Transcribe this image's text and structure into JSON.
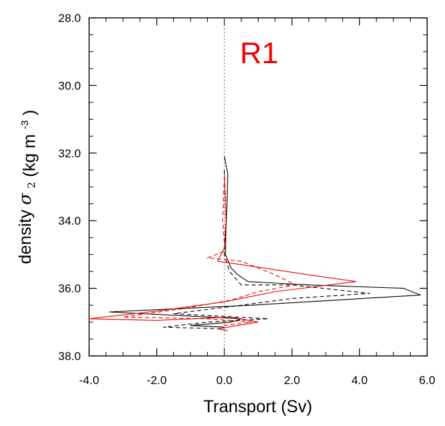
{
  "chart_data": {
    "type": "line",
    "title": "",
    "panel_label": "R1",
    "xlabel": "Transport (Sv)",
    "ylabel": {
      "prefix": "density",
      "symbol_base": "σ",
      "symbol_sub": "2",
      "unit_open": "(kg m",
      "unit_sup": "-3",
      "unit_close": ")"
    },
    "xlim": [
      -4.0,
      6.0
    ],
    "ylim": [
      38.0,
      28.0
    ],
    "y_inverted": true,
    "xticks": [
      -4.0,
      -2.0,
      0.0,
      2.0,
      4.0,
      6.0
    ],
    "xtick_labels": [
      "-4.0",
      "-2.0",
      "0.0",
      "2.0",
      "4.0",
      "6.0"
    ],
    "yticks": [
      28.0,
      30.0,
      32.0,
      34.0,
      36.0,
      38.0
    ],
    "ytick_labels": [
      "28.0",
      "30.0",
      "32.0",
      "34.0",
      "36.0",
      "38.0"
    ],
    "zero_reference_line": {
      "x": 0.0,
      "style": "dotted"
    },
    "grid": false,
    "colors": {
      "black": "#000000",
      "red": "#ee0000",
      "panel_label": "#ee0000"
    },
    "series": [
      {
        "color": "#000000",
        "style": "solid",
        "points": [
          [
            0.0,
            32.1
          ],
          [
            0.1,
            32.6
          ],
          [
            0.08,
            33.5
          ],
          [
            0.05,
            34.2
          ],
          [
            0.03,
            35.0
          ],
          [
            0.2,
            35.4
          ],
          [
            0.4,
            35.6
          ],
          [
            0.7,
            35.8
          ],
          [
            2.5,
            35.9
          ],
          [
            5.3,
            36.0
          ],
          [
            5.8,
            36.2
          ],
          [
            0.8,
            36.5
          ],
          [
            -3.4,
            36.7
          ],
          [
            0.5,
            36.9
          ],
          [
            0.2,
            37.0
          ],
          [
            -1.0,
            37.1
          ],
          [
            0.0,
            37.15
          ]
        ]
      },
      {
        "color": "#000000",
        "style": "dashed",
        "points": [
          [
            0.0,
            32.5
          ],
          [
            0.05,
            34.0
          ],
          [
            0.0,
            35.0
          ],
          [
            0.15,
            35.5
          ],
          [
            0.5,
            35.9
          ],
          [
            2.0,
            35.9
          ],
          [
            4.3,
            36.15
          ],
          [
            2.0,
            36.3
          ],
          [
            0.5,
            36.5
          ],
          [
            -1.5,
            36.75
          ],
          [
            1.3,
            36.9
          ],
          [
            -0.5,
            37.0
          ],
          [
            -1.8,
            37.15
          ],
          [
            0.0,
            37.2
          ]
        ]
      },
      {
        "color": "#ee0000",
        "style": "solid",
        "points": [
          [
            0.0,
            32.6
          ],
          [
            0.05,
            34.0
          ],
          [
            0.0,
            34.8
          ],
          [
            -0.2,
            35.2
          ],
          [
            0.5,
            35.3
          ],
          [
            2.5,
            35.6
          ],
          [
            3.9,
            35.8
          ],
          [
            1.5,
            36.1
          ],
          [
            0.0,
            36.4
          ],
          [
            -1.8,
            36.65
          ],
          [
            -4.0,
            36.9
          ],
          [
            -2.0,
            36.95
          ],
          [
            0.2,
            36.85
          ],
          [
            1.0,
            37.0
          ],
          [
            -0.2,
            37.2
          ],
          [
            0.1,
            37.25
          ]
        ]
      },
      {
        "color": "#ee0000",
        "style": "dashed",
        "points": [
          [
            0.0,
            32.7
          ],
          [
            -0.05,
            34.0
          ],
          [
            0.02,
            34.9
          ],
          [
            -0.5,
            35.1
          ],
          [
            0.5,
            35.2
          ],
          [
            1.5,
            35.6
          ],
          [
            2.1,
            35.9
          ],
          [
            1.0,
            36.1
          ],
          [
            0.2,
            36.35
          ],
          [
            -1.2,
            36.6
          ],
          [
            -3.0,
            36.85
          ],
          [
            -0.5,
            36.9
          ],
          [
            0.8,
            37.0
          ],
          [
            0.0,
            37.1
          ]
        ]
      }
    ]
  }
}
